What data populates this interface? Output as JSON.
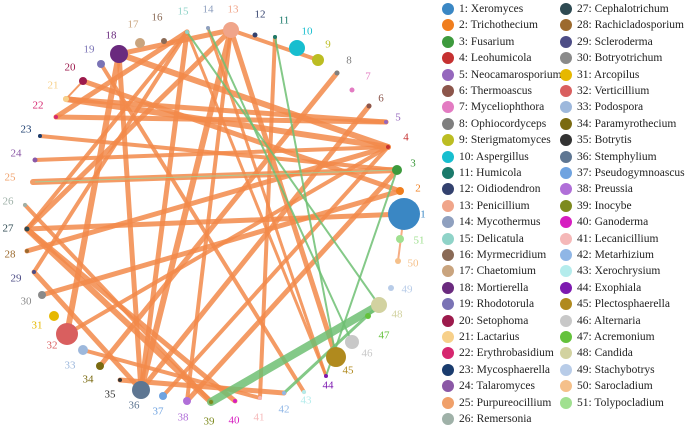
{
  "genera": [
    {
      "id": 1,
      "name": "Xeromyces",
      "color": "#3a87c4",
      "size": 16
    },
    {
      "id": 2,
      "name": "Trichothecium",
      "color": "#f07e1e",
      "size": 4
    },
    {
      "id": 3,
      "name": "Fusarium",
      "color": "#3d9a3d",
      "size": 5
    },
    {
      "id": 4,
      "name": "Leohumicola",
      "color": "#c53131",
      "size": 2
    },
    {
      "id": 5,
      "name": "Neocamarosporium",
      "color": "#9567bd",
      "size": 2
    },
    {
      "id": 6,
      "name": "Thermoascus",
      "color": "#8c564b",
      "size": 2.5
    },
    {
      "id": 7,
      "name": "Myceliophthora",
      "color": "#e37bc2",
      "size": 2.5
    },
    {
      "id": 8,
      "name": "Ophiocordyceps",
      "color": "#7f7f7f",
      "size": 2.5
    },
    {
      "id": 9,
      "name": "Sterigmatomyces",
      "color": "#bcbd22",
      "size": 6
    },
    {
      "id": 10,
      "name": "Aspergillus",
      "color": "#17becf",
      "size": 8
    },
    {
      "id": 11,
      "name": "Humicola",
      "color": "#1b7a6b",
      "size": 2
    },
    {
      "id": 12,
      "name": "Oidiodendron",
      "color": "#33416e",
      "size": 2.5
    },
    {
      "id": 13,
      "name": "Penicillium",
      "color": "#f0a58a",
      "size": 8
    },
    {
      "id": 14,
      "name": "Mycothermus",
      "color": "#8fa0bf",
      "size": 2
    },
    {
      "id": 15,
      "name": "Delicatula",
      "color": "#8fd3c8",
      "size": 2
    },
    {
      "id": 16,
      "name": "Myrmecridium",
      "color": "#8a6a56",
      "size": 3
    },
    {
      "id": 17,
      "name": "Chaetomium",
      "color": "#c9a47e",
      "size": 5
    },
    {
      "id": 18,
      "name": "Mortierella",
      "color": "#6a2a7e",
      "size": 9
    },
    {
      "id": 19,
      "name": "Rhodotorula",
      "color": "#7a73b5",
      "size": 4
    },
    {
      "id": 20,
      "name": "Setophoma",
      "color": "#9c1a4c",
      "size": 4
    },
    {
      "id": 21,
      "name": "Lactarius",
      "color": "#f7d08a",
      "size": 3
    },
    {
      "id": 22,
      "name": "Erythrobasidium",
      "color": "#d6276f",
      "size": 2
    },
    {
      "id": 23,
      "name": "Mycosphaerella",
      "color": "#1a3c6e",
      "size": 2
    },
    {
      "id": 24,
      "name": "Talaromyces",
      "color": "#8b58a6",
      "size": 2.5
    },
    {
      "id": 25,
      "name": "Purpureocillium",
      "color": "#f0a06a",
      "size": 2
    },
    {
      "id": 26,
      "name": "Remersonia",
      "color": "#9fb1a8",
      "size": 2
    },
    {
      "id": 27,
      "name": "Cephalotrichum",
      "color": "#2e4a52",
      "size": 2.5
    },
    {
      "id": 28,
      "name": "Rachicladosporium",
      "color": "#9c6a2e",
      "size": 2
    },
    {
      "id": 29,
      "name": "Scleroderma",
      "color": "#4d4d86",
      "size": 2
    },
    {
      "id": 30,
      "name": "Botryotrichum",
      "color": "#8a8a8a",
      "size": 4
    },
    {
      "id": 31,
      "name": "Arcopilus",
      "color": "#e6b800",
      "size": 5
    },
    {
      "id": 32,
      "name": "Verticillium",
      "color": "#d95f5f",
      "size": 11
    },
    {
      "id": 33,
      "name": "Podospora",
      "color": "#9db8dc",
      "size": 5
    },
    {
      "id": 34,
      "name": "Paramyrothecium",
      "color": "#7a6a10",
      "size": 4
    },
    {
      "id": 35,
      "name": "Botrytis",
      "color": "#333333",
      "size": 2
    },
    {
      "id": 36,
      "name": "Stemphylium",
      "color": "#5e7692",
      "size": 9
    },
    {
      "id": 37,
      "name": "Pseudogymnoascus",
      "color": "#6fa3e0",
      "size": 4
    },
    {
      "id": 38,
      "name": "Preussia",
      "color": "#b06fd8",
      "size": 4
    },
    {
      "id": 39,
      "name": "Inocybe",
      "color": "#7d8a1e",
      "size": 2
    },
    {
      "id": 40,
      "name": "Ganoderma",
      "color": "#d61ec0",
      "size": 2
    },
    {
      "id": 41,
      "name": "Lecanicillium",
      "color": "#f5b8b8",
      "size": 2
    },
    {
      "id": 42,
      "name": "Metarhizium",
      "color": "#8fb6e6",
      "size": 2
    },
    {
      "id": 43,
      "name": "Xerochrysium",
      "color": "#b4ecec",
      "size": 2
    },
    {
      "id": 44,
      "name": "Exophiala",
      "color": "#7d1ab0",
      "size": 2
    },
    {
      "id": 45,
      "name": "Plectosphaerella",
      "color": "#b08a1e",
      "size": 10
    },
    {
      "id": 46,
      "name": "Alternaria",
      "color": "#c8c8c8",
      "size": 7
    },
    {
      "id": 47,
      "name": "Acremonium",
      "color": "#64c23c",
      "size": 3
    },
    {
      "id": 48,
      "name": "Candida",
      "color": "#d2d2a0",
      "size": 8
    },
    {
      "id": 49,
      "name": "Stachybotrys",
      "color": "#b8cce8",
      "size": 3
    },
    {
      "id": 50,
      "name": "Sarocladium",
      "color": "#f5c08a",
      "size": 3
    },
    {
      "id": 51,
      "name": "Tolypocladium",
      "color": "#a0e090",
      "size": 4
    }
  ],
  "edges": [
    [
      13,
      18,
      "#f28a4a",
      5
    ],
    [
      13,
      27,
      "#f28a4a",
      5
    ],
    [
      13,
      36,
      "#f28a4a",
      6
    ],
    [
      13,
      45,
      "#f28a4a",
      5
    ],
    [
      13,
      9,
      "#f28a4a",
      4
    ],
    [
      15,
      22,
      "#f28a4a",
      5
    ],
    [
      15,
      27,
      "#f28a4a",
      4
    ],
    [
      15,
      29,
      "#f28a4a",
      4
    ],
    [
      15,
      36,
      "#f28a4a",
      5
    ],
    [
      15,
      44,
      "#f28a4a",
      3
    ],
    [
      18,
      4,
      "#f28a4a",
      6
    ],
    [
      18,
      32,
      "#f28a4a",
      6
    ],
    [
      18,
      36,
      "#f28a4a",
      5
    ],
    [
      19,
      43,
      "#f28a4a",
      4
    ],
    [
      20,
      2,
      "#f28a4a",
      5
    ],
    [
      21,
      4,
      "#f28a4a",
      6
    ],
    [
      21,
      5,
      "#f28a4a",
      5
    ],
    [
      22,
      5,
      "#f28a4a",
      5
    ],
    [
      24,
      4,
      "#f28a4a",
      4
    ],
    [
      25,
      3,
      "#f28a4a",
      6
    ],
    [
      27,
      1,
      "#f28a4a",
      5
    ],
    [
      27,
      39,
      "#f28a4a",
      6
    ],
    [
      27,
      40,
      "#f28a4a",
      5
    ],
    [
      28,
      4,
      "#f28a4a",
      5
    ],
    [
      29,
      36,
      "#f28a4a",
      5
    ],
    [
      30,
      2,
      "#f28a4a",
      5
    ],
    [
      32,
      4,
      "#f28a4a",
      4
    ],
    [
      33,
      41,
      "#f28a4a",
      4
    ],
    [
      34,
      8,
      "#f28a4a",
      5
    ],
    [
      35,
      42,
      "#f28a4a",
      5
    ],
    [
      36,
      6,
      "#f28a4a",
      5
    ],
    [
      37,
      4,
      "#f28a4a",
      4
    ],
    [
      38,
      3,
      "#f28a4a",
      5
    ],
    [
      23,
      3,
      "#f28a4a",
      4
    ],
    [
      26,
      39,
      "#f28a4a",
      4
    ],
    [
      14,
      44,
      "#f28a4a",
      3
    ],
    [
      11,
      41,
      "#f28a4a",
      4
    ],
    [
      13,
      38,
      "#f28a4a",
      4
    ],
    [
      1,
      50,
      "#f5a070",
      2
    ],
    [
      20,
      21,
      "#f28a4a",
      2
    ],
    [
      15,
      48,
      "#6fbf73",
      2
    ],
    [
      14,
      46,
      "#6fbf73",
      2
    ],
    [
      11,
      45,
      "#6fbf73",
      2
    ],
    [
      3,
      25,
      "#9fd49f",
      1
    ],
    [
      3,
      44,
      "#6fbf73",
      2
    ],
    [
      39,
      48,
      "#6fbf73",
      8
    ],
    [
      42,
      48,
      "#6fbf73",
      3
    ]
  ]
}
